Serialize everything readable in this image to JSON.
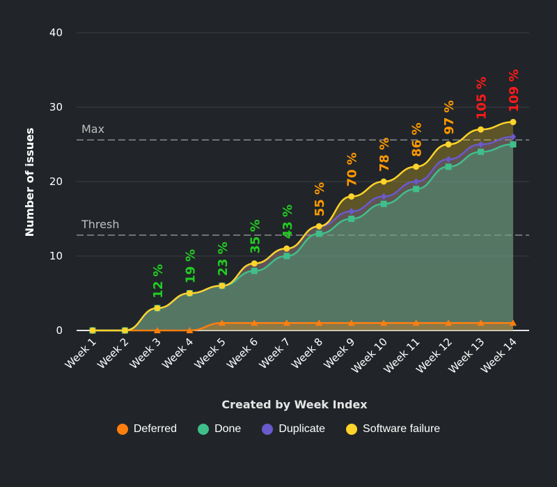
{
  "chart_data": {
    "type": "area",
    "xlabel": "Created by Week Index",
    "ylabel": "Number of issues",
    "ylim": [
      0,
      40
    ],
    "yticks": [
      "0",
      "10",
      "20",
      "30",
      "40"
    ],
    "grid": true,
    "legend_placement": "bottom",
    "categories": [
      "Week 1",
      "Week 2",
      "Week 3",
      "Week 4",
      "Week 5",
      "Week 6",
      "Week 7",
      "Week 8",
      "Week 9",
      "Week 10",
      "Week 11",
      "Week 12",
      "Week 13",
      "Week 14"
    ],
    "series": [
      {
        "name": "Deferred",
        "color": "#ff7f0e",
        "marker": "triangle",
        "values": [
          0,
          0,
          0,
          0,
          1,
          1,
          1,
          1,
          1,
          1,
          1,
          1,
          1,
          1
        ]
      },
      {
        "name": "Done",
        "color": "#3fbf8a",
        "marker": "square",
        "values": [
          0,
          0,
          3,
          5,
          6,
          8,
          10,
          13,
          15,
          17,
          19,
          22,
          24,
          25
        ]
      },
      {
        "name": "Duplicate",
        "color": "#6a5acd",
        "marker": "diamond",
        "values": [
          0,
          0,
          3,
          5,
          6,
          9,
          11,
          14,
          16,
          18,
          20,
          23,
          25,
          26
        ]
      },
      {
        "name": "Software failure",
        "color": "#ffd42a",
        "marker": "circle",
        "values": [
          0,
          0,
          3,
          5,
          6,
          9,
          11,
          14,
          18,
          20,
          22,
          25,
          27,
          28
        ]
      }
    ],
    "reference_lines": [
      {
        "label": "Max",
        "value": 25.6
      },
      {
        "label": "Thresh",
        "value": 12.8
      }
    ],
    "percent_labels": [
      null,
      null,
      "12 %",
      "19 %",
      "23 %",
      "35 %",
      "43 %",
      "55 %",
      "70 %",
      "78 %",
      "86 %",
      "97 %",
      "105 %",
      "109 %"
    ],
    "percent_colors": {
      "low": "#22cc22",
      "mid": "#ff9900",
      "high": "#ff1a1a"
    }
  }
}
